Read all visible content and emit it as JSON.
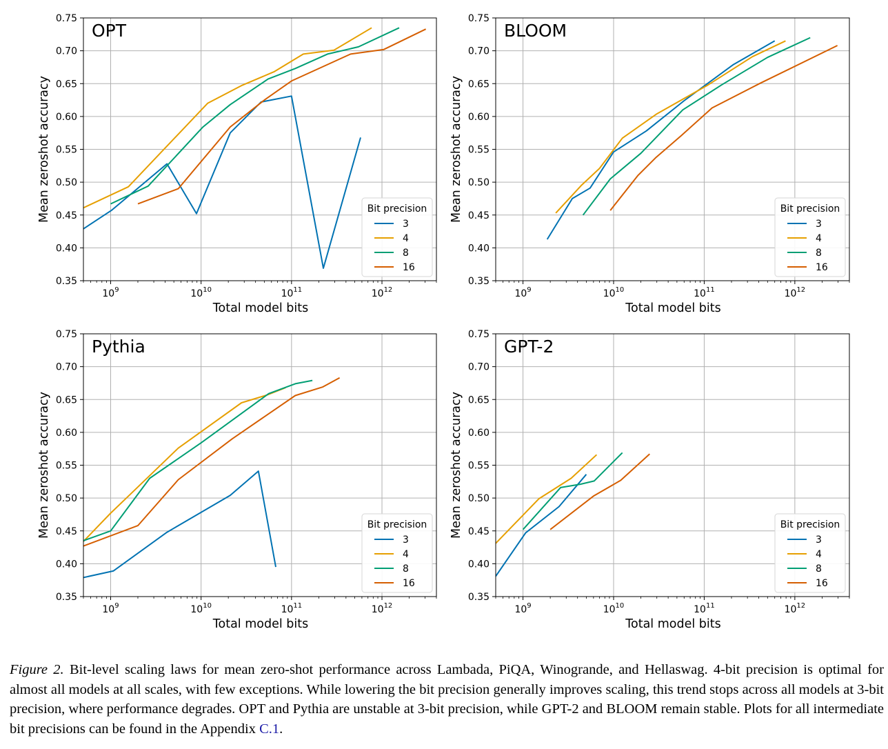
{
  "chart_data": [
    {
      "type": "line",
      "title": "OPT",
      "xlabel": "Total model bits",
      "ylabel": "Mean zeroshot accuracy",
      "xscale": "log",
      "xlim": [
        500000000.0,
        4000000000000.0
      ],
      "ylim": [
        0.35,
        0.75
      ],
      "x_ticks": [
        "10^9",
        "10^10",
        "10^11",
        "10^12"
      ],
      "y_ticks": [
        "0.35",
        "0.40",
        "0.45",
        "0.50",
        "0.55",
        "0.60",
        "0.65",
        "0.70",
        "0.75"
      ],
      "grid": true,
      "legend": {
        "title": "Bit precision",
        "position": "lower-right"
      },
      "series": [
        {
          "name": "3",
          "color": "#0072b2",
          "points": [
            [
              500000000.0,
              0.429
            ],
            [
              1020000000.0,
              0.457
            ],
            [
              4200000000.0,
              0.528
            ],
            [
              8900000000.0,
              0.452
            ],
            [
              21000000000.0,
              0.575
            ],
            [
              46000000000.0,
              0.622
            ],
            [
              100000000000.0,
              0.631
            ],
            [
              225000000000.0,
              0.369
            ],
            [
              580000000000.0,
              0.568
            ]
          ]
        },
        {
          "name": "4",
          "color": "#e69f00",
          "points": [
            [
              500000000.0,
              0.461
            ],
            [
              1570000000.0,
              0.493
            ],
            [
              11800000000.0,
              0.62
            ],
            [
              28000000000.0,
              0.647
            ],
            [
              64000000000.0,
              0.668
            ],
            [
              135000000000.0,
              0.695
            ],
            [
              295000000000.0,
              0.701
            ],
            [
              770000000000.0,
              0.735
            ]
          ]
        },
        {
          "name": "8",
          "color": "#009e73",
          "points": [
            [
              1000000000.0,
              0.467
            ],
            [
              2600000000.0,
              0.494
            ],
            [
              10500000000.0,
              0.584
            ],
            [
              21000000000.0,
              0.618
            ],
            [
              55000000000.0,
              0.657
            ],
            [
              110000000000.0,
              0.673
            ],
            [
              250000000000.0,
              0.695
            ],
            [
              550000000000.0,
              0.706
            ],
            [
              1550000000000.0,
              0.735
            ]
          ]
        },
        {
          "name": "16",
          "color": "#d55e00",
          "points": [
            [
              2000000000.0,
              0.467
            ],
            [
              5600000000.0,
              0.49
            ],
            [
              21000000000.0,
              0.584
            ],
            [
              50000000000.0,
              0.625
            ],
            [
              100000000000.0,
              0.654
            ],
            [
              450000000000.0,
              0.695
            ],
            [
              1050000000000.0,
              0.702
            ],
            [
              3050000000000.0,
              0.733
            ]
          ]
        }
      ]
    },
    {
      "type": "line",
      "title": "BLOOM",
      "xlabel": "Total model bits",
      "ylabel": "Mean zeroshot accuracy",
      "xscale": "log",
      "xlim": [
        500000000.0,
        4000000000000.0
      ],
      "ylim": [
        0.35,
        0.75
      ],
      "x_ticks": [
        "10^9",
        "10^10",
        "10^11",
        "10^12"
      ],
      "y_ticks": [
        "0.35",
        "0.40",
        "0.45",
        "0.50",
        "0.55",
        "0.60",
        "0.65",
        "0.70",
        "0.75"
      ],
      "grid": true,
      "legend": {
        "title": "Bit precision",
        "position": "lower-right"
      },
      "series": [
        {
          "name": "3",
          "color": "#0072b2",
          "points": [
            [
              1850000000.0,
              0.413
            ],
            [
              3500000000.0,
              0.475
            ],
            [
              5500000000.0,
              0.491
            ],
            [
              10000000000.0,
              0.546
            ],
            [
              23000000000.0,
              0.578
            ],
            [
              60000000000.0,
              0.624
            ],
            [
              210000000000.0,
              0.679
            ],
            [
              600000000000.0,
              0.715
            ]
          ]
        },
        {
          "name": "4",
          "color": "#e69f00",
          "points": [
            [
              2300000000.0,
              0.453
            ],
            [
              4400000000.0,
              0.495
            ],
            [
              7000000000.0,
              0.521
            ],
            [
              12500000000.0,
              0.567
            ],
            [
              30000000000.0,
              0.604
            ],
            [
              110000000000.0,
              0.648
            ],
            [
              340000000000.0,
              0.691
            ],
            [
              790000000000.0,
              0.715
            ]
          ]
        },
        {
          "name": "8",
          "color": "#009e73",
          "points": [
            [
              4600000000.0,
              0.45
            ],
            [
              9200000000.0,
              0.505
            ],
            [
              20000000000.0,
              0.544
            ],
            [
              58000000000.0,
              0.61
            ],
            [
              155000000000.0,
              0.648
            ],
            [
              500000000000.0,
              0.69
            ],
            [
              1480000000000.0,
              0.72
            ]
          ]
        },
        {
          "name": "16",
          "color": "#d55e00",
          "points": [
            [
              9200000000.0,
              0.457
            ],
            [
              18500000000.0,
              0.51
            ],
            [
              29000000000.0,
              0.537
            ],
            [
              56000000000.0,
              0.571
            ],
            [
              122000000000.0,
              0.613
            ],
            [
              420000000000.0,
              0.651
            ],
            [
              2950000000000.0,
              0.708
            ]
          ]
        }
      ]
    },
    {
      "type": "line",
      "title": "Pythia",
      "xlabel": "Total model bits",
      "ylabel": "Mean zeroshot accuracy",
      "xscale": "log",
      "xlim": [
        500000000.0,
        4000000000000.0
      ],
      "ylim": [
        0.35,
        0.75
      ],
      "x_ticks": [
        "10^9",
        "10^10",
        "10^11",
        "10^12"
      ],
      "y_ticks": [
        "0.35",
        "0.40",
        "0.45",
        "0.50",
        "0.55",
        "0.60",
        "0.65",
        "0.70",
        "0.75"
      ],
      "grid": true,
      "legend": {
        "title": "Bit precision",
        "position": "lower-right"
      },
      "series": [
        {
          "name": "3",
          "color": "#0072b2",
          "points": [
            [
              500000000.0,
              0.379
            ],
            [
              1070000000.0,
              0.389
            ],
            [
              4200000000.0,
              0.448
            ],
            [
              21000000000.0,
              0.504
            ],
            [
              43000000000.0,
              0.541
            ],
            [
              67000000000.0,
              0.395
            ]
          ]
        },
        {
          "name": "4",
          "color": "#e69f00",
          "points": [
            [
              500000000.0,
              0.434
            ],
            [
              1000000000.0,
              0.477
            ],
            [
              1600000000.0,
              0.504
            ],
            [
              5600000000.0,
              0.576
            ],
            [
              28000000000.0,
              0.645
            ],
            [
              54000000000.0,
              0.657
            ],
            [
              86000000000.0,
              0.668
            ]
          ]
        },
        {
          "name": "8",
          "color": "#009e73",
          "points": [
            [
              500000000.0,
              0.435
            ],
            [
              1000000000.0,
              0.45
            ],
            [
              2700000000.0,
              0.53
            ],
            [
              10000000000.0,
              0.584
            ],
            [
              56000000000.0,
              0.659
            ],
            [
              110000000000.0,
              0.674
            ],
            [
              170000000000.0,
              0.679
            ]
          ]
        },
        {
          "name": "16",
          "color": "#d55e00",
          "points": [
            [
              500000000.0,
              0.427
            ],
            [
              2000000000.0,
              0.458
            ],
            [
              5600000000.0,
              0.528
            ],
            [
              22000000000.0,
              0.59
            ],
            [
              110000000000.0,
              0.656
            ],
            [
              220000000000.0,
              0.669
            ],
            [
              340000000000.0,
              0.683
            ]
          ]
        }
      ]
    },
    {
      "type": "line",
      "title": "GPT-2",
      "xlabel": "Total model bits",
      "ylabel": "Mean zeroshot accuracy",
      "xscale": "log",
      "xlim": [
        500000000.0,
        4000000000000.0
      ],
      "ylim": [
        0.35,
        0.75
      ],
      "x_ticks": [
        "10^9",
        "10^10",
        "10^11",
        "10^12"
      ],
      "y_ticks": [
        "0.35",
        "0.40",
        "0.45",
        "0.50",
        "0.55",
        "0.60",
        "0.65",
        "0.70",
        "0.75"
      ],
      "grid": true,
      "legend": {
        "title": "Bit precision",
        "position": "lower-right"
      },
      "series": [
        {
          "name": "3",
          "color": "#0072b2",
          "points": [
            [
              500000000.0,
              0.381
            ],
            [
              1070000000.0,
              0.447
            ],
            [
              2500000000.0,
              0.487
            ],
            [
              5000000000.0,
              0.536
            ]
          ]
        },
        {
          "name": "4",
          "color": "#e69f00",
          "points": [
            [
              500000000.0,
              0.431
            ],
            [
              1500000000.0,
              0.499
            ],
            [
              3400000000.0,
              0.53
            ],
            [
              6500000000.0,
              0.566
            ]
          ]
        },
        {
          "name": "8",
          "color": "#009e73",
          "points": [
            [
              1000000000.0,
              0.452
            ],
            [
              2600000000.0,
              0.516
            ],
            [
              4300000000.0,
              0.521
            ],
            [
              6100000000.0,
              0.526
            ],
            [
              12500000000.0,
              0.569
            ]
          ]
        },
        {
          "name": "16",
          "color": "#d55e00",
          "points": [
            [
              2000000000.0,
              0.452
            ],
            [
              6000000000.0,
              0.503
            ],
            [
              12000000000.0,
              0.527
            ],
            [
              25000000000.0,
              0.567
            ]
          ]
        }
      ]
    }
  ],
  "caption": {
    "label": "Figure 2.",
    "text": " Bit-level scaling laws for mean zero-shot performance across Lambada, PiQA, Winogrande, and Hellaswag. 4-bit precision is optimal for almost all models at all scales, with few exceptions. While lowering the bit precision generally improves scaling, this trend stops across all models at 3-bit precision, where performance degrades. OPT and Pythia are unstable at 3-bit precision, while GPT-2 and BLOOM remain stable. Plots for all intermediate bit precisions can be found in the Appendix ",
    "link": "C.1",
    "end": "."
  }
}
